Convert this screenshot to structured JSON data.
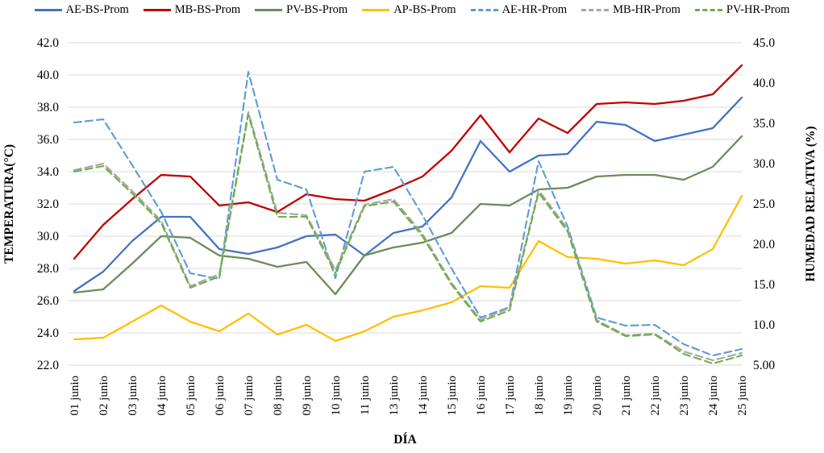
{
  "chart_data": {
    "type": "line",
    "title": "",
    "xlabel": "DÍA",
    "ylabel_left": "TEMPERATURA(°C)",
    "ylabel_right": "HUMEDAD RELATIVA (%)",
    "left_axis": {
      "min": 22.0,
      "max": 42.0,
      "tick_labels": [
        "22.0",
        "24.0",
        "26.0",
        "28.0",
        "30.0",
        "32.0",
        "34.0",
        "36.0",
        "38.0",
        "40.0",
        "42.0"
      ]
    },
    "right_axis": {
      "min": 5.0,
      "max": 45.0,
      "tick_labels": [
        "5.00",
        "10.0",
        "15.0",
        "20.0",
        "25.0",
        "30.0",
        "35.0",
        "40.0",
        "45.0"
      ]
    },
    "grid": "horizontal",
    "legend_position": "top",
    "categories": [
      "01 junio",
      "02 junio",
      "03 junio",
      "04 junio",
      "05 junio",
      "06 junio",
      "07 junio",
      "08 junio",
      "09 junio",
      "10 junio",
      "11 junio",
      "13 junio",
      "14 junio",
      "15 junio",
      "16 junio",
      "17 junio",
      "18 junio",
      "19 junio",
      "20 junio",
      "21 junio",
      "22 junio",
      "23 junio",
      "24 junio",
      "25 junio"
    ],
    "series": [
      {
        "name": "AE-BS-Prom",
        "axis": "left",
        "style": "solid",
        "color": "#4472C4",
        "values": [
          26.6,
          27.8,
          29.7,
          31.2,
          31.2,
          29.2,
          28.9,
          29.3,
          30.0,
          30.1,
          28.8,
          30.2,
          30.6,
          32.4,
          35.9,
          34.0,
          35.0,
          35.1,
          37.1,
          36.9,
          35.9,
          36.3,
          36.7,
          38.6
        ]
      },
      {
        "name": "MB-BS-Prom",
        "axis": "left",
        "style": "solid",
        "color": "#C00000",
        "values": [
          28.6,
          30.7,
          32.3,
          33.8,
          33.7,
          31.9,
          32.1,
          31.5,
          32.6,
          32.3,
          32.2,
          32.9,
          33.7,
          35.3,
          37.5,
          35.2,
          37.3,
          36.4,
          38.2,
          38.3,
          38.2,
          38.4,
          38.8,
          40.6
        ]
      },
      {
        "name": "PV-BS-Prom",
        "axis": "left",
        "style": "solid",
        "color": "#6E8B5A",
        "values": [
          26.5,
          26.7,
          28.3,
          30.0,
          29.9,
          28.8,
          28.6,
          28.1,
          28.4,
          26.4,
          28.8,
          29.3,
          29.6,
          30.2,
          32.0,
          31.9,
          32.9,
          33.0,
          33.7,
          33.8,
          33.8,
          33.5,
          34.3,
          36.2
        ]
      },
      {
        "name": "AP-BS-Prom",
        "axis": "left",
        "style": "solid",
        "color": "#FFC000",
        "values": [
          23.6,
          23.7,
          24.7,
          25.7,
          24.7,
          24.1,
          25.2,
          23.9,
          24.5,
          23.5,
          24.1,
          25.0,
          25.4,
          25.9,
          26.9,
          26.8,
          29.7,
          28.7,
          28.6,
          28.3,
          28.5,
          28.2,
          29.2,
          32.5
        ]
      },
      {
        "name": "AE-HR-Prom",
        "axis": "right",
        "style": "dashed",
        "color": "#5B9BD5",
        "values": [
          35.1,
          35.5,
          29.8,
          24.0,
          16.4,
          15.7,
          41.4,
          28.0,
          26.8,
          15.8,
          29.0,
          29.6,
          23.6,
          17.0,
          10.9,
          12.2,
          30.3,
          22.2,
          10.9,
          9.9,
          10.0,
          7.6,
          6.2,
          7.0
        ]
      },
      {
        "name": "MB-HR-Prom",
        "axis": "right",
        "style": "dashed",
        "color": "#A5A5A5",
        "values": [
          29.2,
          30.0,
          26.6,
          22.9,
          14.8,
          16.3,
          36.4,
          23.9,
          23.6,
          16.8,
          24.9,
          25.6,
          21.3,
          15.2,
          10.6,
          12.1,
          26.7,
          21.9,
          10.6,
          8.7,
          8.9,
          6.7,
          5.6,
          6.5
        ]
      },
      {
        "name": "PV-HR-Prom",
        "axis": "right",
        "style": "dashed",
        "color": "#70AD47",
        "values": [
          29.0,
          29.7,
          26.3,
          22.6,
          14.6,
          16.0,
          36.1,
          23.4,
          23.4,
          16.4,
          24.7,
          25.3,
          21.0,
          15.0,
          10.4,
          11.8,
          26.4,
          21.6,
          10.4,
          8.6,
          8.8,
          6.4,
          5.2,
          6.2
        ]
      }
    ],
    "colors": {
      "gridline": "#D9D9D9",
      "axis_text": "#000000",
      "background": "#FFFFFF"
    }
  }
}
